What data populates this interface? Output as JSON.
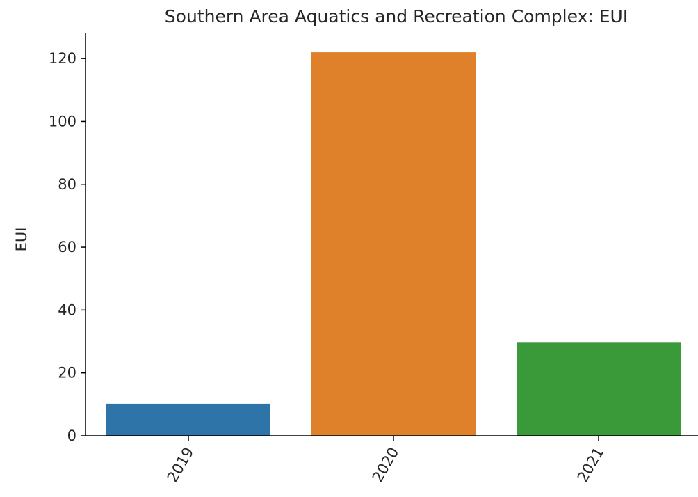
{
  "chart_data": {
    "type": "bar",
    "title": "Southern Area Aquatics and Recreation Complex: EUI",
    "xlabel": "",
    "ylabel": "EUI",
    "categories": [
      "2019",
      "2020",
      "2021"
    ],
    "values": [
      10.2,
      122.0,
      29.6
    ],
    "colors": [
      "#2f74a9",
      "#df802b",
      "#3a9a3a"
    ],
    "ylim": [
      0,
      128
    ],
    "yticks": [
      0,
      20,
      40,
      60,
      80,
      100,
      120
    ],
    "grid": false,
    "legend": "none"
  }
}
